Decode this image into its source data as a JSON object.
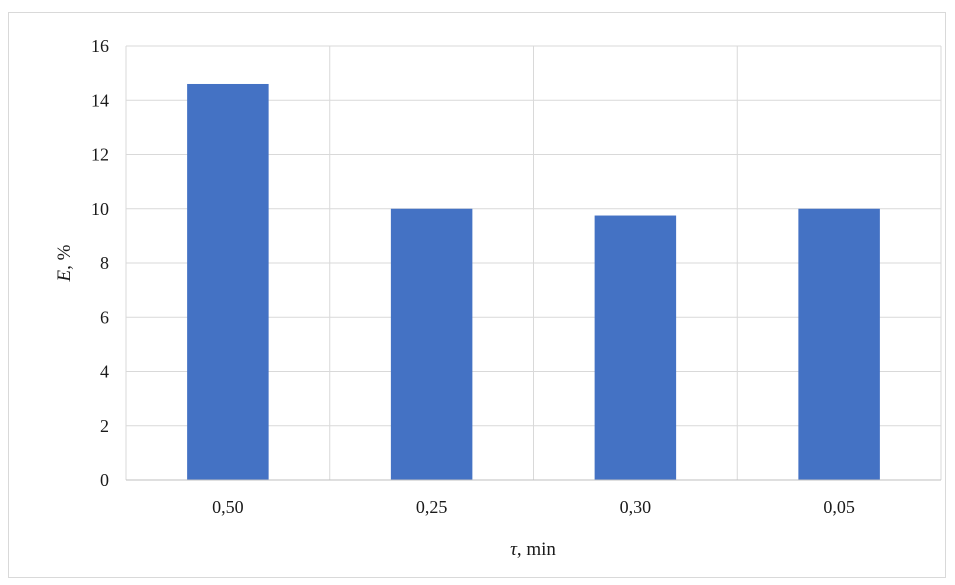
{
  "chart_data": {
    "type": "bar",
    "categories": [
      "0,50",
      "0,25",
      "0,30",
      "0,05"
    ],
    "values": [
      14.6,
      10.0,
      9.75,
      10.0
    ],
    "ylim": [
      0,
      16
    ],
    "yticks": [
      "0",
      "2",
      "4",
      "6",
      "8",
      "10",
      "12",
      "14",
      "16"
    ],
    "xlabel": {
      "symbol": "τ",
      "rest": ", min"
    },
    "ylabel": {
      "symbol": "E",
      "rest": ", %"
    },
    "grid": true,
    "legend": "none",
    "colors": {
      "bar": "#4472c4",
      "grid": "#d9d9d9",
      "axis": "#bfbfbf",
      "frame": "#d9d9d9"
    }
  }
}
